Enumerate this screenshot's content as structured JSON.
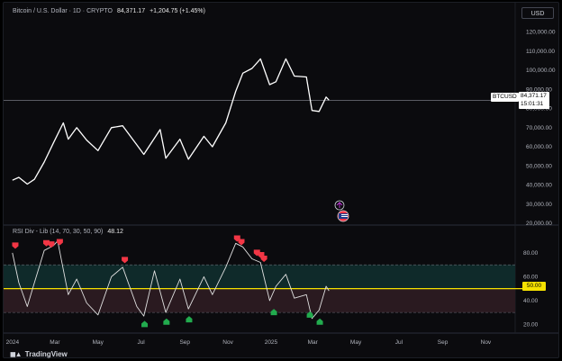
{
  "header": {
    "symbol_title": "Bitcoin / U.S. Dollar · 1D · CRYPTO",
    "last_price": "84,371.17",
    "change": "+1,204.75 (+1.45%)",
    "currency_button": "USD"
  },
  "price_axis": {
    "ticks": [
      "120,000.00",
      "110,000.00",
      "100,000.00",
      "90,000.00",
      "80,000.00",
      "70,000.00",
      "60,000.00",
      "50,000.00",
      "40,000.00",
      "30,000.00",
      "20,000.00"
    ],
    "symbol_tag": "BTCUSD",
    "price_tag": "84,371.17",
    "countdown": "15:01:31"
  },
  "indicator": {
    "title": "RSI Div - Lib (14, 70, 30, 50, 90)",
    "value": "48.12",
    "ticks": [
      "80.00",
      "60.00",
      "40.00",
      "20.00"
    ],
    "current_tag": "50.00",
    "colors": {
      "midline": "#f5e100",
      "bearish_marker": "#f23645",
      "bullish_marker": "#22ab4e",
      "band_top": "#0f2a2a",
      "band_bottom": "#2a1a20"
    }
  },
  "time_axis": {
    "labels": [
      "2024",
      "Mar",
      "May",
      "Jul",
      "Sep",
      "Nov",
      "2025",
      "Mar",
      "May",
      "Jul",
      "Sep",
      "Nov"
    ]
  },
  "branding": {
    "logo_text": "TradingView"
  },
  "chart_data": {
    "type": "line",
    "price_series": [
      [
        "2024-01-01",
        42500
      ],
      [
        "2024-01-10",
        44000
      ],
      [
        "2024-01-22",
        40500
      ],
      [
        "2024-02-01",
        43000
      ],
      [
        "2024-02-15",
        52000
      ],
      [
        "2024-02-28",
        62000
      ],
      [
        "2024-03-13",
        72500
      ],
      [
        "2024-03-20",
        64000
      ],
      [
        "2024-04-01",
        70000
      ],
      [
        "2024-04-15",
        63500
      ],
      [
        "2024-05-01",
        58000
      ],
      [
        "2024-05-20",
        70000
      ],
      [
        "2024-06-05",
        71000
      ],
      [
        "2024-06-25",
        61000
      ],
      [
        "2024-07-05",
        56000
      ],
      [
        "2024-07-28",
        69000
      ],
      [
        "2024-08-05",
        54000
      ],
      [
        "2024-08-25",
        64000
      ],
      [
        "2024-09-06",
        53500
      ],
      [
        "2024-09-28",
        65500
      ],
      [
        "2024-10-10",
        60000
      ],
      [
        "2024-10-29",
        72500
      ],
      [
        "2024-11-12",
        89000
      ],
      [
        "2024-11-22",
        98500
      ],
      [
        "2024-12-05",
        101000
      ],
      [
        "2024-12-17",
        106000
      ],
      [
        "2024-12-30",
        92500
      ],
      [
        "2025-01-08",
        94000
      ],
      [
        "2025-01-22",
        106000
      ],
      [
        "2025-02-03",
        97000
      ],
      [
        "2025-02-20",
        96500
      ],
      [
        "2025-02-28",
        79000
      ],
      [
        "2025-03-10",
        78500
      ],
      [
        "2025-03-20",
        86000
      ],
      [
        "2025-03-24",
        84371
      ]
    ],
    "rsi_series": [
      [
        "2024-01-01",
        80
      ],
      [
        "2024-01-10",
        55
      ],
      [
        "2024-01-22",
        35
      ],
      [
        "2024-02-01",
        55
      ],
      [
        "2024-02-15",
        82
      ],
      [
        "2024-02-28",
        86
      ],
      [
        "2024-03-05",
        90
      ],
      [
        "2024-03-20",
        45
      ],
      [
        "2024-04-01",
        58
      ],
      [
        "2024-04-15",
        38
      ],
      [
        "2024-05-01",
        28
      ],
      [
        "2024-05-20",
        60
      ],
      [
        "2024-06-05",
        68
      ],
      [
        "2024-06-25",
        35
      ],
      [
        "2024-07-05",
        27
      ],
      [
        "2024-07-20",
        65
      ],
      [
        "2024-08-05",
        30
      ],
      [
        "2024-08-25",
        58
      ],
      [
        "2024-09-06",
        33
      ],
      [
        "2024-09-28",
        60
      ],
      [
        "2024-10-10",
        45
      ],
      [
        "2024-10-29",
        68
      ],
      [
        "2024-11-12",
        88
      ],
      [
        "2024-11-22",
        85
      ],
      [
        "2024-12-05",
        75
      ],
      [
        "2024-12-17",
        72
      ],
      [
        "2024-12-30",
        40
      ],
      [
        "2025-01-08",
        52
      ],
      [
        "2025-01-22",
        62
      ],
      [
        "2025-02-03",
        42
      ],
      [
        "2025-02-20",
        45
      ],
      [
        "2025-02-28",
        25
      ],
      [
        "2025-03-10",
        32
      ],
      [
        "2025-03-20",
        52
      ],
      [
        "2025-03-24",
        48.12
      ]
    ],
    "bearish_divergence_markers": [
      [
        "2024-01-05",
        83
      ],
      [
        "2024-02-18",
        85
      ],
      [
        "2024-02-25",
        84
      ],
      [
        "2024-03-08",
        86
      ],
      [
        "2024-06-08",
        71
      ],
      [
        "2024-11-14",
        89
      ],
      [
        "2024-11-20",
        86
      ],
      [
        "2024-12-12",
        77
      ],
      [
        "2024-12-18",
        75
      ],
      [
        "2024-12-22",
        72
      ]
    ],
    "bullish_divergence_markers": [
      [
        "2024-07-06",
        26
      ],
      [
        "2024-08-06",
        28
      ],
      [
        "2024-09-07",
        30
      ],
      [
        "2025-01-05",
        36
      ],
      [
        "2025-02-25",
        34
      ],
      [
        "2025-03-11",
        28
      ]
    ],
    "price_ylim": [
      20000,
      125000
    ],
    "rsi_ylim": [
      15,
      92
    ],
    "rsi_levels": {
      "upper": 70,
      "mid": 50,
      "lower": 30
    },
    "xlim": [
      "2023-12-22",
      "2025-12-10"
    ]
  }
}
